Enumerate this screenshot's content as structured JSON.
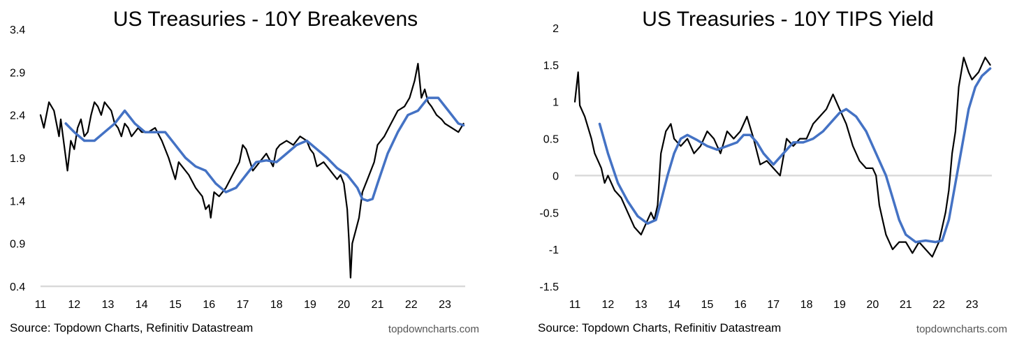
{
  "chart_data": [
    {
      "type": "line",
      "title": "US Treasuries - 10Y Breakevens",
      "source": "Source: Topdown Charts, Refinitiv Datastream",
      "brand": "topdowncharts.com",
      "x_tick_labels": [
        "11",
        "12",
        "13",
        "14",
        "15",
        "16",
        "17",
        "18",
        "19",
        "20",
        "21",
        "22",
        "23"
      ],
      "y_tick_labels": [
        "3.4",
        "2.9",
        "2.4",
        "1.9",
        "1.4",
        "0.9",
        "0.4"
      ],
      "xlim": [
        2011.0,
        2023.6
      ],
      "ylim": [
        0.4,
        3.4
      ],
      "colors": {
        "raw": "#000000",
        "smoothed": "#4472C4",
        "axis": "#d9d9d9"
      },
      "series": [
        {
          "role": "raw",
          "x": [
            2011.0,
            2011.1,
            2011.25,
            2011.4,
            2011.55,
            2011.6,
            2011.7,
            2011.8,
            2011.9,
            2012.0,
            2012.1,
            2012.2,
            2012.3,
            2012.4,
            2012.5,
            2012.6,
            2012.7,
            2012.8,
            2012.9,
            2013.0,
            2013.1,
            2013.2,
            2013.3,
            2013.4,
            2013.5,
            2013.6,
            2013.7,
            2013.8,
            2013.9,
            2014.0,
            2014.2,
            2014.4,
            2014.6,
            2014.8,
            2015.0,
            2015.1,
            2015.2,
            2015.4,
            2015.6,
            2015.8,
            2015.9,
            2016.0,
            2016.05,
            2016.15,
            2016.3,
            2016.5,
            2016.7,
            2016.9,
            2017.0,
            2017.1,
            2017.3,
            2017.5,
            2017.7,
            2017.9,
            2018.0,
            2018.1,
            2018.3,
            2018.5,
            2018.7,
            2018.9,
            2019.0,
            2019.1,
            2019.2,
            2019.4,
            2019.6,
            2019.8,
            2019.9,
            2020.0,
            2020.1,
            2020.15,
            2020.2,
            2020.25,
            2020.35,
            2020.45,
            2020.55,
            2020.7,
            2020.9,
            2021.0,
            2021.2,
            2021.4,
            2021.6,
            2021.8,
            2021.95,
            2022.1,
            2022.2,
            2022.3,
            2022.4,
            2022.5,
            2022.6,
            2022.75,
            2022.9,
            2023.0,
            2023.2,
            2023.4,
            2023.55
          ],
          "values": [
            2.4,
            2.25,
            2.55,
            2.45,
            2.15,
            2.35,
            2.05,
            1.75,
            2.1,
            2.0,
            2.25,
            2.35,
            2.15,
            2.2,
            2.4,
            2.55,
            2.5,
            2.4,
            2.55,
            2.5,
            2.45,
            2.3,
            2.25,
            2.15,
            2.3,
            2.25,
            2.15,
            2.2,
            2.25,
            2.2,
            2.2,
            2.25,
            2.1,
            1.9,
            1.65,
            1.85,
            1.8,
            1.7,
            1.55,
            1.45,
            1.3,
            1.35,
            1.2,
            1.5,
            1.45,
            1.55,
            1.7,
            1.85,
            2.05,
            2.0,
            1.75,
            1.85,
            1.95,
            1.8,
            2.0,
            2.05,
            2.1,
            2.05,
            2.15,
            2.1,
            2.0,
            1.95,
            1.8,
            1.85,
            1.75,
            1.65,
            1.7,
            1.6,
            1.3,
            0.95,
            0.5,
            0.9,
            1.05,
            1.2,
            1.5,
            1.65,
            1.85,
            2.05,
            2.15,
            2.3,
            2.45,
            2.5,
            2.6,
            2.8,
            3.0,
            2.6,
            2.7,
            2.55,
            2.5,
            2.4,
            2.35,
            2.3,
            2.25,
            2.2,
            2.3
          ]
        },
        {
          "role": "smoothed",
          "x": [
            2011.75,
            2012.0,
            2012.3,
            2012.6,
            2012.9,
            2013.2,
            2013.5,
            2013.8,
            2014.1,
            2014.4,
            2014.7,
            2015.0,
            2015.3,
            2015.6,
            2015.9,
            2016.2,
            2016.5,
            2016.8,
            2017.1,
            2017.4,
            2017.7,
            2018.0,
            2018.3,
            2018.6,
            2018.9,
            2019.2,
            2019.5,
            2019.8,
            2020.1,
            2020.4,
            2020.55,
            2020.7,
            2020.85,
            2021.0,
            2021.3,
            2021.6,
            2021.9,
            2022.2,
            2022.5,
            2022.8,
            2023.1,
            2023.4,
            2023.55
          ],
          "values": [
            2.3,
            2.2,
            2.1,
            2.1,
            2.2,
            2.3,
            2.45,
            2.3,
            2.2,
            2.2,
            2.2,
            2.05,
            1.9,
            1.8,
            1.75,
            1.6,
            1.5,
            1.55,
            1.7,
            1.85,
            1.87,
            1.85,
            1.95,
            2.05,
            2.1,
            2.0,
            1.9,
            1.78,
            1.7,
            1.55,
            1.42,
            1.4,
            1.42,
            1.6,
            1.95,
            2.2,
            2.4,
            2.45,
            2.6,
            2.6,
            2.45,
            2.3,
            2.28
          ]
        }
      ]
    },
    {
      "type": "line",
      "title": "US Treasuries - 10Y TIPS Yield",
      "source": "Source: Topdown Charts, Refinitiv Datastream",
      "brand": "topdowncharts.com",
      "x_tick_labels": [
        "11",
        "12",
        "13",
        "14",
        "15",
        "16",
        "17",
        "18",
        "19",
        "20",
        "21",
        "22",
        "23"
      ],
      "y_tick_labels": [
        "2",
        "1.5",
        "1",
        "0.5",
        "0",
        "-0.5",
        "-1",
        "-1.5"
      ],
      "xlim": [
        2011.0,
        2023.6
      ],
      "ylim": [
        -1.5,
        2.0
      ],
      "colors": {
        "raw": "#000000",
        "smoothed": "#4472C4",
        "axis": "#d9d9d9"
      },
      "series": [
        {
          "role": "raw",
          "x": [
            2011.0,
            2011.1,
            2011.15,
            2011.3,
            2011.5,
            2011.6,
            2011.7,
            2011.8,
            2011.9,
            2012.0,
            2012.2,
            2012.4,
            2012.6,
            2012.8,
            2013.0,
            2013.1,
            2013.2,
            2013.3,
            2013.4,
            2013.5,
            2013.6,
            2013.75,
            2013.9,
            2014.0,
            2014.2,
            2014.4,
            2014.6,
            2014.8,
            2015.0,
            2015.2,
            2015.4,
            2015.6,
            2015.8,
            2016.0,
            2016.2,
            2016.4,
            2016.6,
            2016.8,
            2017.0,
            2017.2,
            2017.4,
            2017.6,
            2017.8,
            2018.0,
            2018.2,
            2018.4,
            2018.6,
            2018.8,
            2019.0,
            2019.2,
            2019.4,
            2019.6,
            2019.8,
            2020.0,
            2020.1,
            2020.2,
            2020.3,
            2020.4,
            2020.6,
            2020.8,
            2021.0,
            2021.2,
            2021.4,
            2021.6,
            2021.8,
            2022.0,
            2022.2,
            2022.3,
            2022.4,
            2022.5,
            2022.6,
            2022.75,
            2022.9,
            2023.0,
            2023.2,
            2023.4,
            2023.55
          ],
          "values": [
            1.0,
            1.4,
            0.95,
            0.8,
            0.5,
            0.3,
            0.2,
            0.1,
            -0.1,
            0.0,
            -0.2,
            -0.3,
            -0.5,
            -0.7,
            -0.8,
            -0.7,
            -0.6,
            -0.5,
            -0.6,
            -0.4,
            0.3,
            0.6,
            0.7,
            0.5,
            0.4,
            0.5,
            0.3,
            0.4,
            0.6,
            0.5,
            0.3,
            0.6,
            0.5,
            0.6,
            0.8,
            0.5,
            0.15,
            0.2,
            0.1,
            0.0,
            0.5,
            0.4,
            0.5,
            0.5,
            0.7,
            0.8,
            0.9,
            1.1,
            0.9,
            0.7,
            0.4,
            0.2,
            0.1,
            0.1,
            0.0,
            -0.4,
            -0.6,
            -0.8,
            -1.0,
            -0.9,
            -0.9,
            -1.05,
            -0.9,
            -1.0,
            -1.1,
            -0.9,
            -0.5,
            -0.2,
            0.3,
            0.6,
            1.2,
            1.6,
            1.4,
            1.3,
            1.4,
            1.6,
            1.5
          ]
        },
        {
          "role": "smoothed",
          "x": [
            2011.75,
            2012.0,
            2012.3,
            2012.6,
            2012.9,
            2013.2,
            2013.45,
            2013.6,
            2013.8,
            2014.0,
            2014.2,
            2014.4,
            2014.7,
            2015.0,
            2015.3,
            2015.6,
            2015.9,
            2016.1,
            2016.3,
            2016.5,
            2016.7,
            2016.9,
            2017.0,
            2017.3,
            2017.6,
            2017.9,
            2018.2,
            2018.5,
            2018.8,
            2019.0,
            2019.2,
            2019.5,
            2019.8,
            2020.1,
            2020.4,
            2020.6,
            2020.8,
            2021.0,
            2021.3,
            2021.6,
            2021.9,
            2022.1,
            2022.3,
            2022.5,
            2022.7,
            2022.9,
            2023.1,
            2023.3,
            2023.55
          ],
          "values": [
            0.7,
            0.3,
            -0.1,
            -0.35,
            -0.55,
            -0.65,
            -0.6,
            -0.35,
            0.0,
            0.3,
            0.5,
            0.55,
            0.48,
            0.4,
            0.35,
            0.4,
            0.45,
            0.55,
            0.55,
            0.45,
            0.3,
            0.2,
            0.15,
            0.3,
            0.45,
            0.45,
            0.5,
            0.6,
            0.75,
            0.85,
            0.9,
            0.8,
            0.6,
            0.3,
            0.0,
            -0.3,
            -0.6,
            -0.8,
            -0.9,
            -0.88,
            -0.9,
            -0.88,
            -0.6,
            -0.1,
            0.4,
            0.9,
            1.2,
            1.35,
            1.45
          ]
        }
      ]
    }
  ]
}
